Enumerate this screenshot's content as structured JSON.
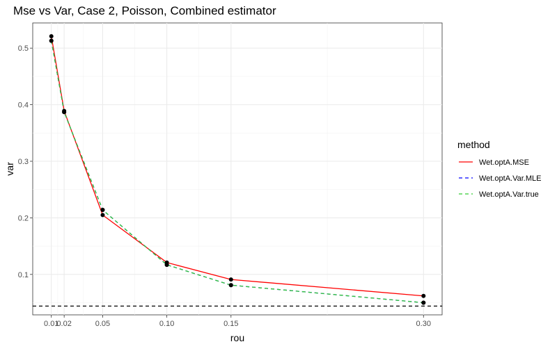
{
  "chart_data": {
    "type": "line",
    "title": "Mse vs Var, Case 2, Poisson, Combined estimator",
    "xlabel": "rou",
    "ylabel": "var",
    "x": [
      0.01,
      0.02,
      0.05,
      0.1,
      0.15,
      0.3
    ],
    "x_tick_labels": [
      "0.01",
      "0.02",
      "0.05",
      "0.10",
      "0.15",
      "0.30"
    ],
    "y_ticks": [
      0.1,
      0.2,
      0.3,
      0.4,
      0.5
    ],
    "y_tick_labels": [
      "0.1",
      "0.2",
      "0.3",
      "0.4",
      "0.5"
    ],
    "xlim": [
      -0.0045,
      0.3145
    ],
    "ylim": [
      0.0285,
      0.5445
    ],
    "grid": true,
    "legend_position": "right",
    "legend_title": "method",
    "series": [
      {
        "name": "Wet.optA.MSE",
        "color": "#ff0000",
        "dash": "solid",
        "values": [
          0.521,
          0.389,
          0.205,
          0.121,
          0.091,
          0.062
        ]
      },
      {
        "name": "Wet.optA.Var.MLE",
        "color": "#0000ff",
        "dash": "dashed",
        "values": [
          0.513,
          0.387,
          0.214,
          0.117,
          0.081,
          0.05
        ]
      },
      {
        "name": "Wet.optA.Var.true",
        "color": "#33cc33",
        "dash": "dashed",
        "values": [
          0.513,
          0.387,
          0.214,
          0.117,
          0.081,
          0.05
        ]
      }
    ],
    "reference_line": {
      "y": 0.044,
      "color": "#000000",
      "dash": "dashed"
    }
  }
}
